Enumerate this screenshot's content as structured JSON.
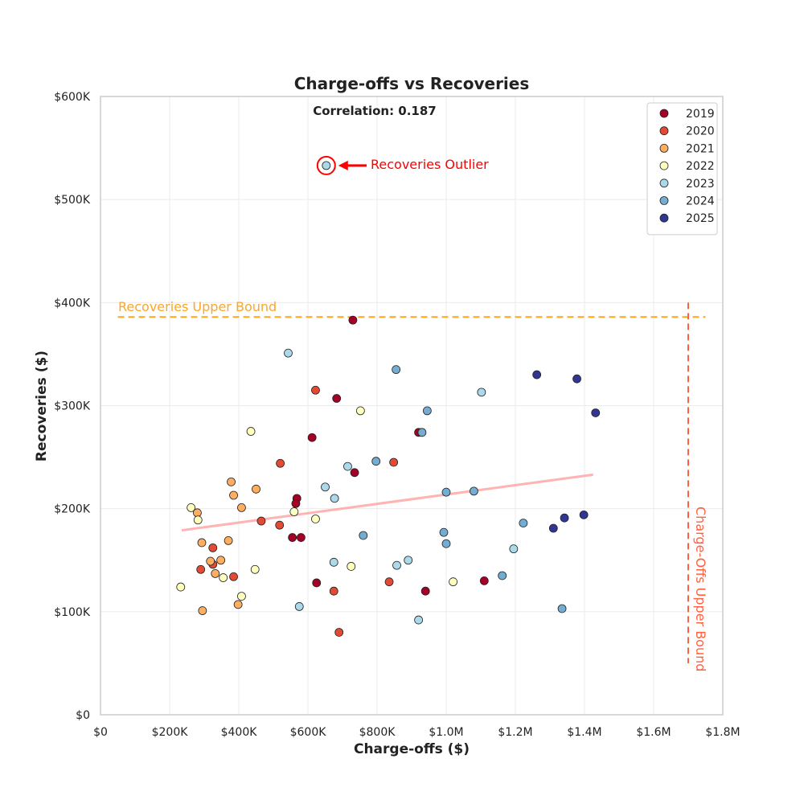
{
  "chart_data": {
    "type": "scatter",
    "title": "Charge-offs vs Recoveries",
    "xlabel": "Charge-offs ($)",
    "ylabel": "Recoveries ($)",
    "xlim": [
      0,
      1800000
    ],
    "ylim": [
      0,
      600000
    ],
    "x_ticks": [
      0,
      200000,
      400000,
      600000,
      800000,
      1000000,
      1200000,
      1400000,
      1600000,
      1800000
    ],
    "x_tick_labels": [
      "$0",
      "$200K",
      "$400K",
      "$600K",
      "$800K",
      "$1.0M",
      "$1.2M",
      "$1.4M",
      "$1.6M",
      "$1.8M"
    ],
    "y_ticks": [
      0,
      100000,
      200000,
      300000,
      400000,
      500000,
      600000
    ],
    "y_tick_labels": [
      "$0",
      "$100K",
      "$200K",
      "$300K",
      "$400K",
      "$500K",
      "$600K"
    ],
    "grid": true,
    "legend_position": "top-right",
    "correlation_text": "Correlation: 0.187",
    "series": [
      {
        "name": "2019",
        "color": "#a50026",
        "points": [
          [
            730000,
            383000
          ],
          [
            683000,
            307000
          ],
          [
            612000,
            269000
          ],
          [
            920000,
            274000
          ],
          [
            735000,
            235000
          ],
          [
            568000,
            210000
          ],
          [
            565000,
            205000
          ],
          [
            555000,
            172000
          ],
          [
            580000,
            172000
          ],
          [
            625000,
            128000
          ],
          [
            940000,
            120000
          ],
          [
            1110000,
            130000
          ]
        ]
      },
      {
        "name": "2020",
        "color": "#e34a33",
        "points": [
          [
            622000,
            315000
          ],
          [
            520000,
            244000
          ],
          [
            848000,
            245000
          ],
          [
            465000,
            188000
          ],
          [
            518000,
            184000
          ],
          [
            325000,
            162000
          ],
          [
            290000,
            141000
          ],
          [
            325000,
            146000
          ],
          [
            385000,
            134000
          ],
          [
            675000,
            120000
          ],
          [
            835000,
            129000
          ],
          [
            690000,
            80000
          ]
        ]
      },
      {
        "name": "2021",
        "color": "#fdae61",
        "points": [
          [
            378000,
            226000
          ],
          [
            450000,
            219000
          ],
          [
            385000,
            213000
          ],
          [
            408000,
            201000
          ],
          [
            280000,
            196000
          ],
          [
            293000,
            167000
          ],
          [
            370000,
            169000
          ],
          [
            318000,
            149000
          ],
          [
            348000,
            150000
          ],
          [
            332000,
            137000
          ],
          [
            398000,
            107000
          ],
          [
            295000,
            101000
          ]
        ]
      },
      {
        "name": "2022",
        "color": "#ffffbf",
        "points": [
          [
            752000,
            295000
          ],
          [
            435000,
            275000
          ],
          [
            262000,
            201000
          ],
          [
            282000,
            189000
          ],
          [
            560000,
            197000
          ],
          [
            622000,
            190000
          ],
          [
            355000,
            133000
          ],
          [
            447000,
            141000
          ],
          [
            725000,
            144000
          ],
          [
            1020000,
            129000
          ],
          [
            408000,
            115000
          ],
          [
            232000,
            124000
          ]
        ]
      },
      {
        "name": "2023",
        "color": "#abd9e9",
        "points": [
          [
            543000,
            351000
          ],
          [
            1102000,
            313000
          ],
          [
            715000,
            241000
          ],
          [
            650000,
            221000
          ],
          [
            677000,
            210000
          ],
          [
            1195000,
            161000
          ],
          [
            890000,
            150000
          ],
          [
            675000,
            148000
          ],
          [
            857000,
            145000
          ],
          [
            575000,
            105000
          ],
          [
            920000,
            92000
          ],
          [
            653000,
            533000
          ]
        ]
      },
      {
        "name": "2024",
        "color": "#74add1",
        "points": [
          [
            855000,
            335000
          ],
          [
            945000,
            295000
          ],
          [
            930000,
            274000
          ],
          [
            797000,
            246000
          ],
          [
            1000000,
            216000
          ],
          [
            1080000,
            217000
          ],
          [
            760000,
            174000
          ],
          [
            1223000,
            186000
          ],
          [
            993000,
            177000
          ],
          [
            1000000,
            166000
          ],
          [
            1162000,
            135000
          ],
          [
            1335000,
            103000
          ]
        ]
      },
      {
        "name": "2025",
        "color": "#313695",
        "points": [
          [
            1262000,
            330000
          ],
          [
            1378000,
            326000
          ],
          [
            1432000,
            293000
          ],
          [
            1398000,
            194000
          ],
          [
            1342000,
            191000
          ],
          [
            1310000,
            181000
          ]
        ]
      }
    ],
    "trendline": {
      "x": [
        235000,
        1425000
      ],
      "y": [
        179000,
        233000
      ],
      "color": "#ff9999"
    },
    "annotations": {
      "outlier": {
        "label": "Recoveries Outlier",
        "x": 653000,
        "y": 533000,
        "color": "#ff0000"
      },
      "recoveries_upper_bound": {
        "label": "Recoveries Upper Bound",
        "y": 386000,
        "x_range": [
          50000,
          1750000
        ],
        "color": "#ffa520"
      },
      "chargeoffs_upper_bound": {
        "label": "Charge-Offs Upper Bound",
        "x": 1700000,
        "y_range": [
          50000,
          400000
        ],
        "color": "#ff6040"
      }
    }
  }
}
